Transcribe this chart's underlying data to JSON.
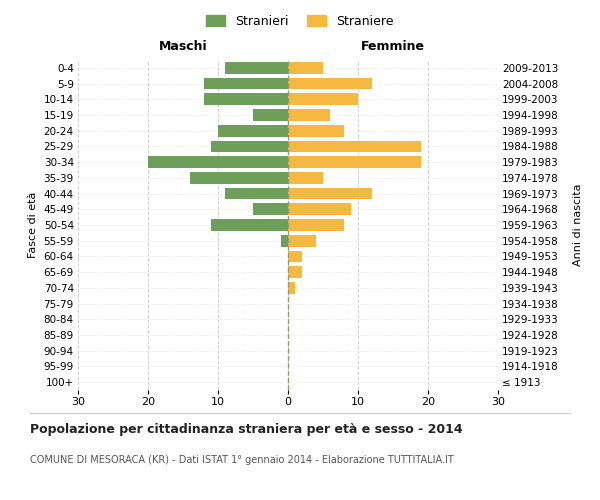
{
  "age_groups": [
    "100+",
    "95-99",
    "90-94",
    "85-89",
    "80-84",
    "75-79",
    "70-74",
    "65-69",
    "60-64",
    "55-59",
    "50-54",
    "45-49",
    "40-44",
    "35-39",
    "30-34",
    "25-29",
    "20-24",
    "15-19",
    "10-14",
    "5-9",
    "0-4"
  ],
  "birth_years": [
    "≤ 1913",
    "1914-1918",
    "1919-1923",
    "1924-1928",
    "1929-1933",
    "1934-1938",
    "1939-1943",
    "1944-1948",
    "1949-1953",
    "1954-1958",
    "1959-1963",
    "1964-1968",
    "1969-1973",
    "1974-1978",
    "1979-1983",
    "1984-1988",
    "1989-1993",
    "1994-1998",
    "1999-2003",
    "2004-2008",
    "2009-2013"
  ],
  "males": [
    0,
    0,
    0,
    0,
    0,
    0,
    0,
    0,
    0,
    1,
    11,
    5,
    9,
    14,
    20,
    11,
    10,
    5,
    12,
    12,
    9
  ],
  "females": [
    0,
    0,
    0,
    0,
    0,
    0,
    1,
    2,
    2,
    4,
    8,
    9,
    12,
    5,
    19,
    19,
    8,
    6,
    10,
    12,
    5
  ],
  "male_color": "#6d9e5a",
  "female_color": "#f5b942",
  "background_color": "#ffffff",
  "grid_color": "#cccccc",
  "title": "Popolazione per cittadinanza straniera per età e sesso - 2014",
  "subtitle": "COMUNE DI MESORACA (KR) - Dati ISTAT 1° gennaio 2014 - Elaborazione TUTTITALIA.IT",
  "ylabel_left": "Fasce di età",
  "ylabel_right": "Anni di nascita",
  "xlabel_left": "Maschi",
  "xlabel_right": "Femmine",
  "legend_male": "Stranieri",
  "legend_female": "Straniere",
  "xlim": 30,
  "xticks": [
    -30,
    -20,
    -10,
    0,
    10,
    20,
    30
  ],
  "xticklabels": [
    "30",
    "20",
    "10",
    "0",
    "10",
    "20",
    "30"
  ]
}
